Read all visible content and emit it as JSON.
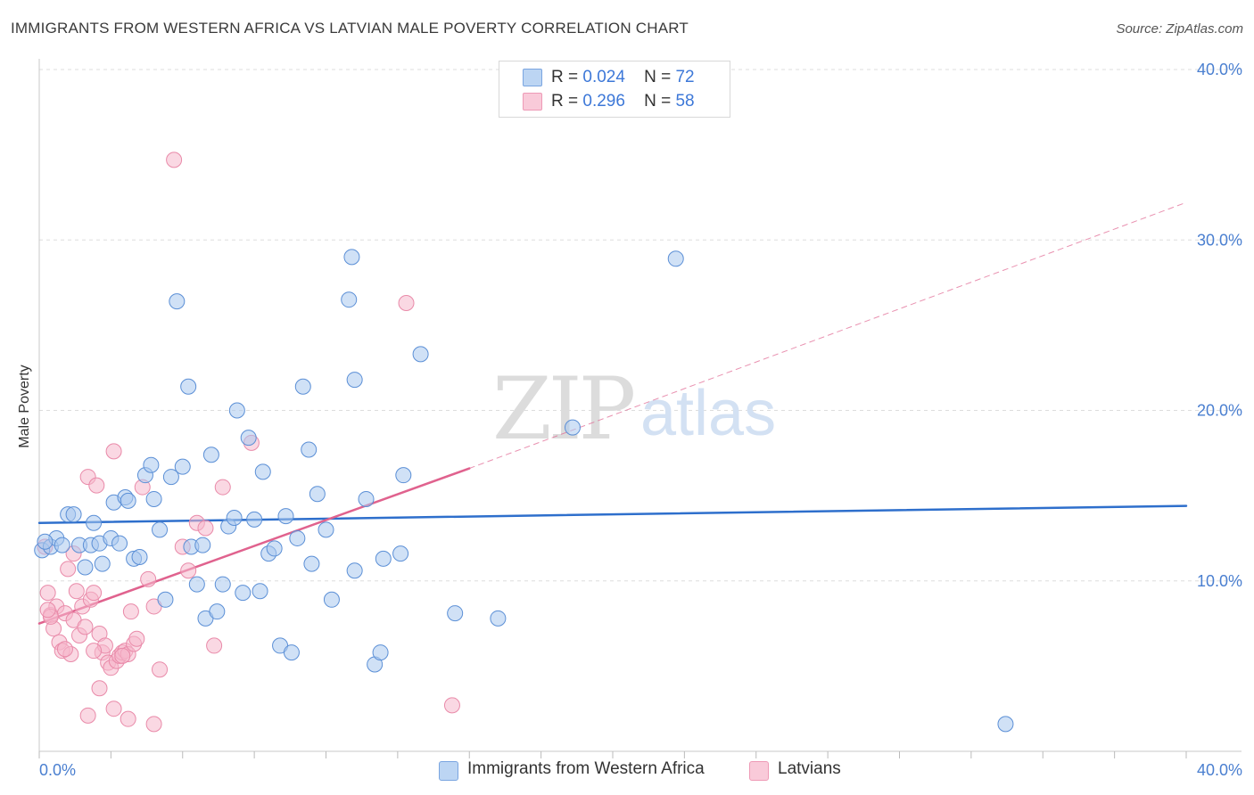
{
  "title": "IMMIGRANTS FROM WESTERN AFRICA VS LATVIAN MALE POVERTY CORRELATION CHART",
  "source": "Source: ZipAtlas.com",
  "watermark": {
    "zip": "ZIP",
    "atlas": "atlas"
  },
  "colors": {
    "blue_fill": "#a9c8ef",
    "blue_stroke": "#5b8fd6",
    "blue_line": "#2e6fcc",
    "pink_fill": "#f6b8cc",
    "pink_stroke": "#e98aa9",
    "pink_line": "#e0628e",
    "tick_text": "#4a7fd0",
    "grid": "#dddddd"
  },
  "legend": {
    "series": [
      {
        "r_label": "R =",
        "r_value": "0.024",
        "n_label": "N =",
        "n_value": "72"
      },
      {
        "r_label": "R =",
        "r_value": "0.296",
        "n_label": "N =",
        "n_value": "58"
      }
    ]
  },
  "bottom_legend": {
    "blue_label": "Immigrants from Western Africa",
    "pink_label": "Latvians"
  },
  "chart_data": {
    "type": "scatter",
    "title": "IMMIGRANTS FROM WESTERN AFRICA VS LATVIAN MALE POVERTY CORRELATION CHART",
    "xlabel": "",
    "ylabel": "Male Poverty",
    "xlim": [
      0,
      40
    ],
    "ylim": [
      0,
      40
    ],
    "x_tick_labels": [
      "0.0%",
      "40.0%"
    ],
    "y_ticks": [
      {
        "value": 10,
        "label": "10.0%"
      },
      {
        "value": 20,
        "label": "20.0%"
      },
      {
        "value": 30,
        "label": "30.0%"
      },
      {
        "value": 40,
        "label": "40.0%"
      }
    ],
    "grid": true,
    "series": [
      {
        "name": "Immigrants from Western Africa",
        "color": "#a9c8ef",
        "points": [
          [
            0.1,
            11.8
          ],
          [
            0.4,
            12.0
          ],
          [
            0.6,
            12.5
          ],
          [
            0.8,
            12.1
          ],
          [
            1.0,
            13.9
          ],
          [
            1.2,
            13.9
          ],
          [
            1.4,
            12.1
          ],
          [
            1.6,
            10.8
          ],
          [
            1.8,
            12.1
          ],
          [
            1.9,
            13.4
          ],
          [
            2.1,
            12.2
          ],
          [
            2.2,
            11.0
          ],
          [
            2.5,
            12.5
          ],
          [
            2.6,
            14.6
          ],
          [
            2.8,
            12.2
          ],
          [
            3.0,
            14.9
          ],
          [
            3.1,
            14.7
          ],
          [
            3.3,
            11.3
          ],
          [
            3.5,
            11.4
          ],
          [
            3.7,
            16.2
          ],
          [
            3.9,
            16.8
          ],
          [
            4.0,
            14.8
          ],
          [
            4.2,
            13.0
          ],
          [
            4.4,
            8.9
          ],
          [
            4.6,
            16.1
          ],
          [
            4.8,
            26.4
          ],
          [
            5.0,
            16.7
          ],
          [
            5.2,
            21.4
          ],
          [
            5.3,
            12.0
          ],
          [
            5.5,
            9.8
          ],
          [
            5.7,
            12.1
          ],
          [
            5.8,
            7.8
          ],
          [
            6.0,
            17.4
          ],
          [
            6.2,
            8.2
          ],
          [
            6.4,
            9.8
          ],
          [
            6.6,
            13.2
          ],
          [
            6.8,
            13.7
          ],
          [
            6.9,
            20.0
          ],
          [
            7.1,
            9.3
          ],
          [
            7.3,
            18.4
          ],
          [
            7.5,
            13.6
          ],
          [
            7.7,
            9.4
          ],
          [
            7.8,
            16.4
          ],
          [
            8.0,
            11.6
          ],
          [
            8.2,
            11.9
          ],
          [
            8.4,
            6.2
          ],
          [
            8.6,
            13.8
          ],
          [
            8.8,
            5.8
          ],
          [
            9.0,
            12.5
          ],
          [
            9.2,
            21.4
          ],
          [
            9.4,
            17.7
          ],
          [
            9.5,
            11.0
          ],
          [
            9.7,
            15.1
          ],
          [
            10.0,
            13.0
          ],
          [
            10.2,
            8.9
          ],
          [
            10.9,
            29.0
          ],
          [
            10.8,
            26.5
          ],
          [
            11.0,
            10.6
          ],
          [
            11.0,
            21.8
          ],
          [
            11.4,
            14.8
          ],
          [
            11.7,
            5.1
          ],
          [
            11.9,
            5.8
          ],
          [
            12.0,
            11.3
          ],
          [
            12.6,
            11.6
          ],
          [
            12.7,
            16.2
          ],
          [
            13.3,
            23.3
          ],
          [
            14.5,
            8.1
          ],
          [
            16.0,
            7.8
          ],
          [
            18.6,
            19.0
          ],
          [
            22.2,
            28.9
          ],
          [
            33.7,
            1.6
          ],
          [
            0.2,
            12.3
          ]
        ]
      },
      {
        "name": "Latvians",
        "color": "#f6b8cc",
        "points": [
          [
            0.2,
            12.0
          ],
          [
            0.3,
            9.3
          ],
          [
            0.4,
            8.0
          ],
          [
            0.5,
            7.2
          ],
          [
            0.6,
            8.5
          ],
          [
            0.7,
            6.4
          ],
          [
            0.8,
            5.9
          ],
          [
            0.9,
            8.1
          ],
          [
            1.0,
            10.7
          ],
          [
            1.1,
            5.7
          ],
          [
            1.2,
            7.7
          ],
          [
            1.3,
            9.4
          ],
          [
            1.4,
            6.8
          ],
          [
            1.5,
            8.5
          ],
          [
            1.6,
            7.3
          ],
          [
            1.7,
            16.1
          ],
          [
            1.8,
            8.9
          ],
          [
            1.9,
            9.3
          ],
          [
            2.0,
            15.6
          ],
          [
            2.1,
            6.9
          ],
          [
            2.2,
            5.8
          ],
          [
            2.3,
            6.2
          ],
          [
            2.4,
            5.2
          ],
          [
            2.5,
            4.9
          ],
          [
            2.6,
            17.6
          ],
          [
            2.7,
            5.3
          ],
          [
            2.8,
            5.6
          ],
          [
            2.9,
            5.8
          ],
          [
            3.0,
            5.9
          ],
          [
            3.1,
            5.7
          ],
          [
            3.2,
            8.2
          ],
          [
            3.3,
            6.3
          ],
          [
            3.4,
            6.6
          ],
          [
            3.6,
            15.5
          ],
          [
            3.8,
            10.1
          ],
          [
            4.0,
            8.5
          ],
          [
            4.2,
            4.8
          ],
          [
            4.7,
            34.7
          ],
          [
            5.0,
            12.0
          ],
          [
            5.2,
            10.6
          ],
          [
            5.5,
            13.4
          ],
          [
            5.8,
            13.1
          ],
          [
            6.1,
            6.2
          ],
          [
            6.4,
            15.5
          ],
          [
            7.4,
            18.1
          ],
          [
            12.8,
            26.3
          ],
          [
            14.4,
            2.7
          ],
          [
            4.0,
            1.6
          ],
          [
            3.1,
            1.9
          ],
          [
            2.6,
            2.5
          ],
          [
            2.1,
            3.7
          ],
          [
            1.7,
            2.1
          ],
          [
            0.9,
            6.0
          ],
          [
            0.4,
            7.9
          ],
          [
            1.2,
            11.6
          ],
          [
            2.9,
            5.6
          ],
          [
            1.9,
            5.9
          ],
          [
            0.3,
            8.3
          ]
        ]
      }
    ],
    "trend_lines": [
      {
        "series": "Immigrants from Western Africa",
        "x": [
          0,
          40
        ],
        "y": [
          13.4,
          14.4
        ],
        "style": "solid"
      },
      {
        "series": "Latvians",
        "x": [
          0,
          15
        ],
        "y": [
          7.5,
          16.6
        ],
        "style": "solid"
      },
      {
        "series": "Latvians",
        "x": [
          15,
          40
        ],
        "y": [
          16.6,
          32.2
        ],
        "style": "dashed"
      }
    ]
  }
}
